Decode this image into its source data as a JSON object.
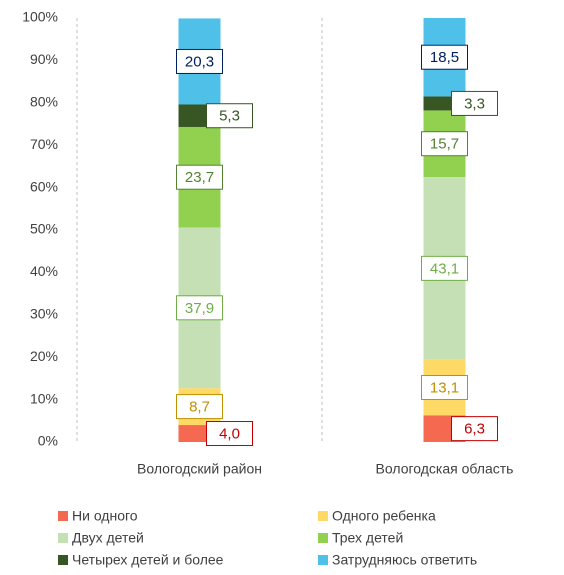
{
  "chart_data": {
    "type": "stacked_bar",
    "categories": [
      "Вологодский район",
      "Вологодская область"
    ],
    "series": [
      {
        "name": "Ни одного",
        "color": "#f4694f",
        "label_color": "#c00000",
        "values": [
          4.0,
          6.3
        ],
        "value_labels": [
          "4,0",
          "6,3"
        ]
      },
      {
        "name": "Одного ребенка",
        "color": "#ffd966",
        "label_color": "#bf9000",
        "values": [
          8.7,
          13.1
        ],
        "value_labels": [
          "8,7",
          "13,1"
        ]
      },
      {
        "name": "Двух детей",
        "color": "#c5e0b4",
        "label_color": "#70ad47",
        "values": [
          37.9,
          43.1
        ],
        "value_labels": [
          "37,9",
          "43,1"
        ]
      },
      {
        "name": "Трех детей",
        "color": "#92d050",
        "label_color": "#548235",
        "values": [
          23.7,
          15.7
        ],
        "value_labels": [
          "23,7",
          "15,7"
        ]
      },
      {
        "name": "Четырех детей и более",
        "color": "#375623",
        "label_color": "#375623",
        "values": [
          5.3,
          3.3
        ],
        "value_labels": [
          "5,3",
          "3,3"
        ]
      },
      {
        "name": "Затрудняюсь ответить",
        "color": "#4fc1e9",
        "label_color": "#002060",
        "values": [
          20.3,
          18.5
        ],
        "value_labels": [
          "20,3",
          "18,5"
        ]
      }
    ],
    "ylim": [
      0,
      100
    ],
    "yticks": [
      {
        "value": 0,
        "label": "0%"
      },
      {
        "value": 10,
        "label": "10%"
      },
      {
        "value": 20,
        "label": "20%"
      },
      {
        "value": 30,
        "label": "30%"
      },
      {
        "value": 40,
        "label": "40%"
      },
      {
        "value": 50,
        "label": "50%"
      },
      {
        "value": 60,
        "label": "60%"
      },
      {
        "value": 70,
        "label": "70%"
      },
      {
        "value": 80,
        "label": "80%"
      },
      {
        "value": 90,
        "label": "90%"
      },
      {
        "value": 100,
        "label": "100%"
      }
    ]
  }
}
